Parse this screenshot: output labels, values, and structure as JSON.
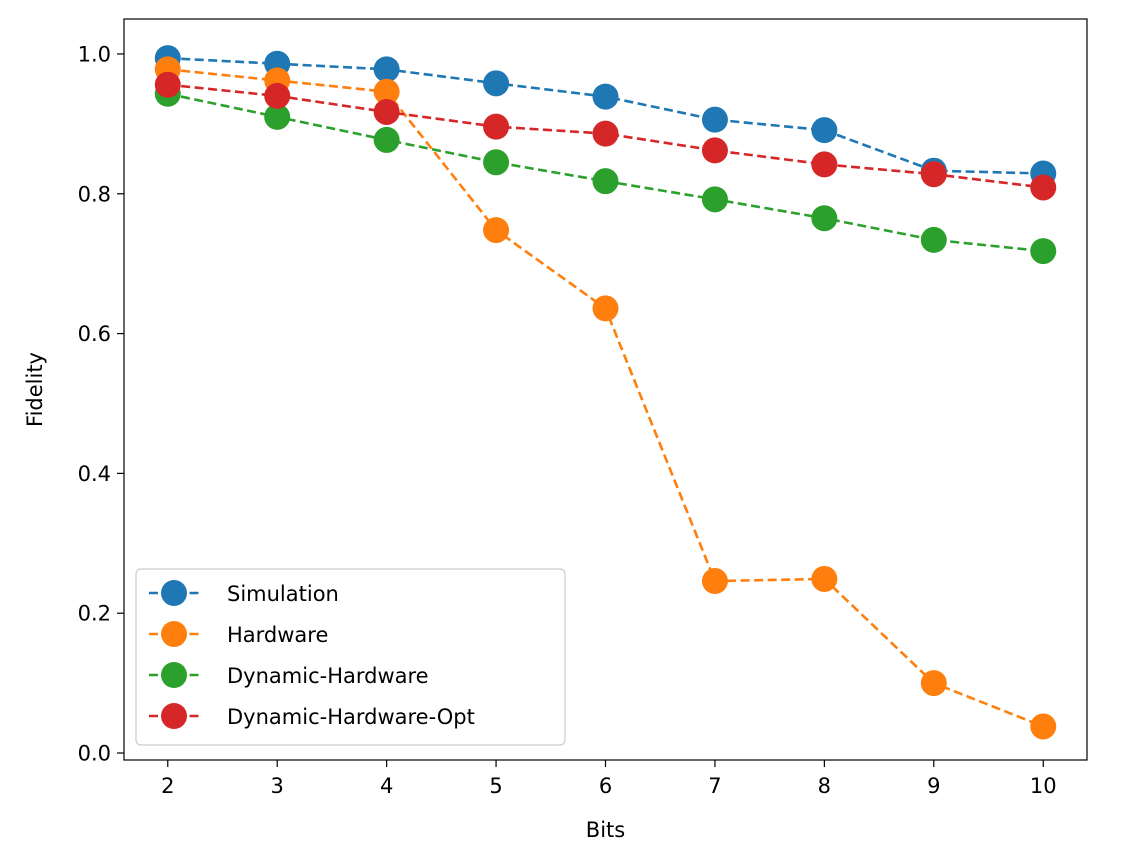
{
  "chart_data": {
    "type": "line",
    "title": "",
    "xlabel": "Bits",
    "ylabel": "Fidelity",
    "x": [
      2,
      3,
      4,
      5,
      6,
      7,
      8,
      9,
      10
    ],
    "xlim": [
      1.6,
      10.4
    ],
    "ylim": [
      -0.01,
      1.05
    ],
    "xticks": [
      "2",
      "3",
      "4",
      "5",
      "6",
      "7",
      "8",
      "9",
      "10"
    ],
    "yticks": [
      "0.0",
      "0.2",
      "0.4",
      "0.6",
      "0.8",
      "1.0"
    ],
    "grid": false,
    "legend_position": "lower-left",
    "line_style": "dashed",
    "marker": "circle",
    "series": [
      {
        "name": "Simulation",
        "color": "#1f77b4",
        "values": [
          0.994,
          0.986,
          0.978,
          0.958,
          0.939,
          0.906,
          0.891,
          0.833,
          0.829
        ]
      },
      {
        "name": "Hardware",
        "color": "#ff7f0e",
        "values": [
          0.978,
          0.962,
          0.946,
          0.748,
          0.636,
          0.246,
          0.249,
          0.1,
          0.038
        ]
      },
      {
        "name": "Dynamic-Hardware",
        "color": "#2ca02c",
        "values": [
          0.943,
          0.91,
          0.877,
          0.845,
          0.818,
          0.792,
          0.765,
          0.734,
          0.718
        ]
      },
      {
        "name": "Dynamic-Hardware-Opt",
        "color": "#d62728",
        "values": [
          0.956,
          0.94,
          0.917,
          0.896,
          0.886,
          0.862,
          0.842,
          0.828,
          0.809
        ]
      }
    ]
  }
}
